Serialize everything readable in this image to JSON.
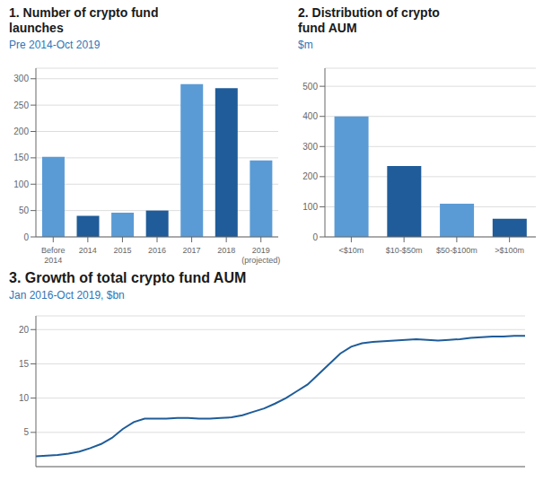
{
  "chart_data": [
    {
      "type": "bar",
      "title": "1. Number of crypto fund\nlaunches",
      "subtitle": "Pre 2014-Oct 2019",
      "categories": [
        "Before\n2014",
        "2014",
        "2015",
        "2016",
        "2017",
        "2018",
        "2019\n(projected)"
      ],
      "values": [
        152,
        40,
        46,
        50,
        290,
        282,
        145
      ],
      "colors": [
        "#5b9bd5",
        "#1f5c99",
        "#5b9bd5",
        "#1f5c99",
        "#5b9bd5",
        "#1f5c99",
        "#5b9bd5"
      ],
      "ylim": [
        0,
        320
      ],
      "yticks": [
        0,
        50,
        100,
        150,
        200,
        250,
        300
      ],
      "grid": true
    },
    {
      "type": "bar",
      "title": "2. Distribution of crypto\nfund AUM",
      "subtitle": "$m",
      "categories": [
        "<$10m",
        "$10-$50m",
        "$50-$100m",
        ">$100m"
      ],
      "values": [
        400,
        235,
        110,
        60
      ],
      "colors": [
        "#5b9bd5",
        "#1f5c99",
        "#5b9bd5",
        "#1f5c99"
      ],
      "ylim": [
        0,
        560
      ],
      "yticks": [
        0,
        100,
        200,
        300,
        400,
        500
      ],
      "grid": true
    },
    {
      "type": "line",
      "title": "3. Growth of total crypto fund AUM",
      "subtitle": "Jan 2016-Oct 2019, $bn",
      "x": [
        0,
        1,
        2,
        3,
        4,
        5,
        6,
        7,
        8,
        9,
        10,
        11,
        12,
        13,
        14,
        15,
        16,
        17,
        18,
        19,
        20,
        21,
        22,
        23,
        24,
        25,
        26,
        27,
        28,
        29,
        30,
        31,
        32,
        33,
        34,
        35,
        36,
        37,
        38,
        39,
        40,
        41,
        42,
        43,
        44,
        45
      ],
      "values": [
        1.5,
        1.6,
        1.7,
        1.9,
        2.2,
        2.7,
        3.3,
        4.2,
        5.5,
        6.5,
        7.0,
        7.0,
        7.0,
        7.1,
        7.1,
        7.0,
        7.0,
        7.1,
        7.2,
        7.5,
        8.0,
        8.5,
        9.2,
        10.0,
        11.0,
        12.0,
        13.5,
        15.0,
        16.5,
        17.5,
        18.0,
        18.2,
        18.3,
        18.4,
        18.5,
        18.6,
        18.5,
        18.4,
        18.5,
        18.6,
        18.8,
        18.9,
        19.0,
        19.0,
        19.1,
        19.1
      ],
      "color": "#1f5c99",
      "xlim": [
        0,
        45
      ],
      "ylim": [
        0,
        22
      ],
      "yticks": [
        5,
        10,
        15,
        20
      ],
      "grid": true,
      "tick_labels": "y"
    }
  ]
}
